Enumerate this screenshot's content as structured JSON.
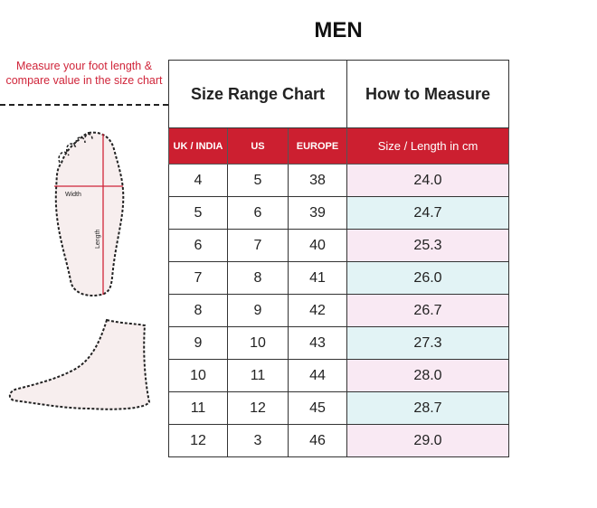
{
  "title": "MEN",
  "instruction": "Measure your foot length & compare value in the size chart",
  "diagram": {
    "width_label": "Width",
    "length_label": "Length"
  },
  "table": {
    "group_headers": [
      "Size Range Chart",
      "How to Measure"
    ],
    "columns": [
      "UK / INDIA",
      "US",
      "EUROPE",
      "Size / Length in cm"
    ],
    "rows": [
      [
        "4",
        "5",
        "38",
        "24.0"
      ],
      [
        "5",
        "6",
        "39",
        "24.7"
      ],
      [
        "6",
        "7",
        "40",
        "25.3"
      ],
      [
        "7",
        "8",
        "41",
        "26.0"
      ],
      [
        "8",
        "9",
        "42",
        "26.7"
      ],
      [
        "9",
        "10",
        "43",
        "27.3"
      ],
      [
        "10",
        "11",
        "44",
        "28.0"
      ],
      [
        "11",
        "12",
        "45",
        "28.7"
      ],
      [
        "12",
        "3",
        "46",
        "29.0"
      ]
    ]
  },
  "colors": {
    "header_red": "#cc1f30",
    "row_pink": "#f9e9f3",
    "row_teal": "#e2f3f5",
    "accent_text": "#d0253a"
  }
}
